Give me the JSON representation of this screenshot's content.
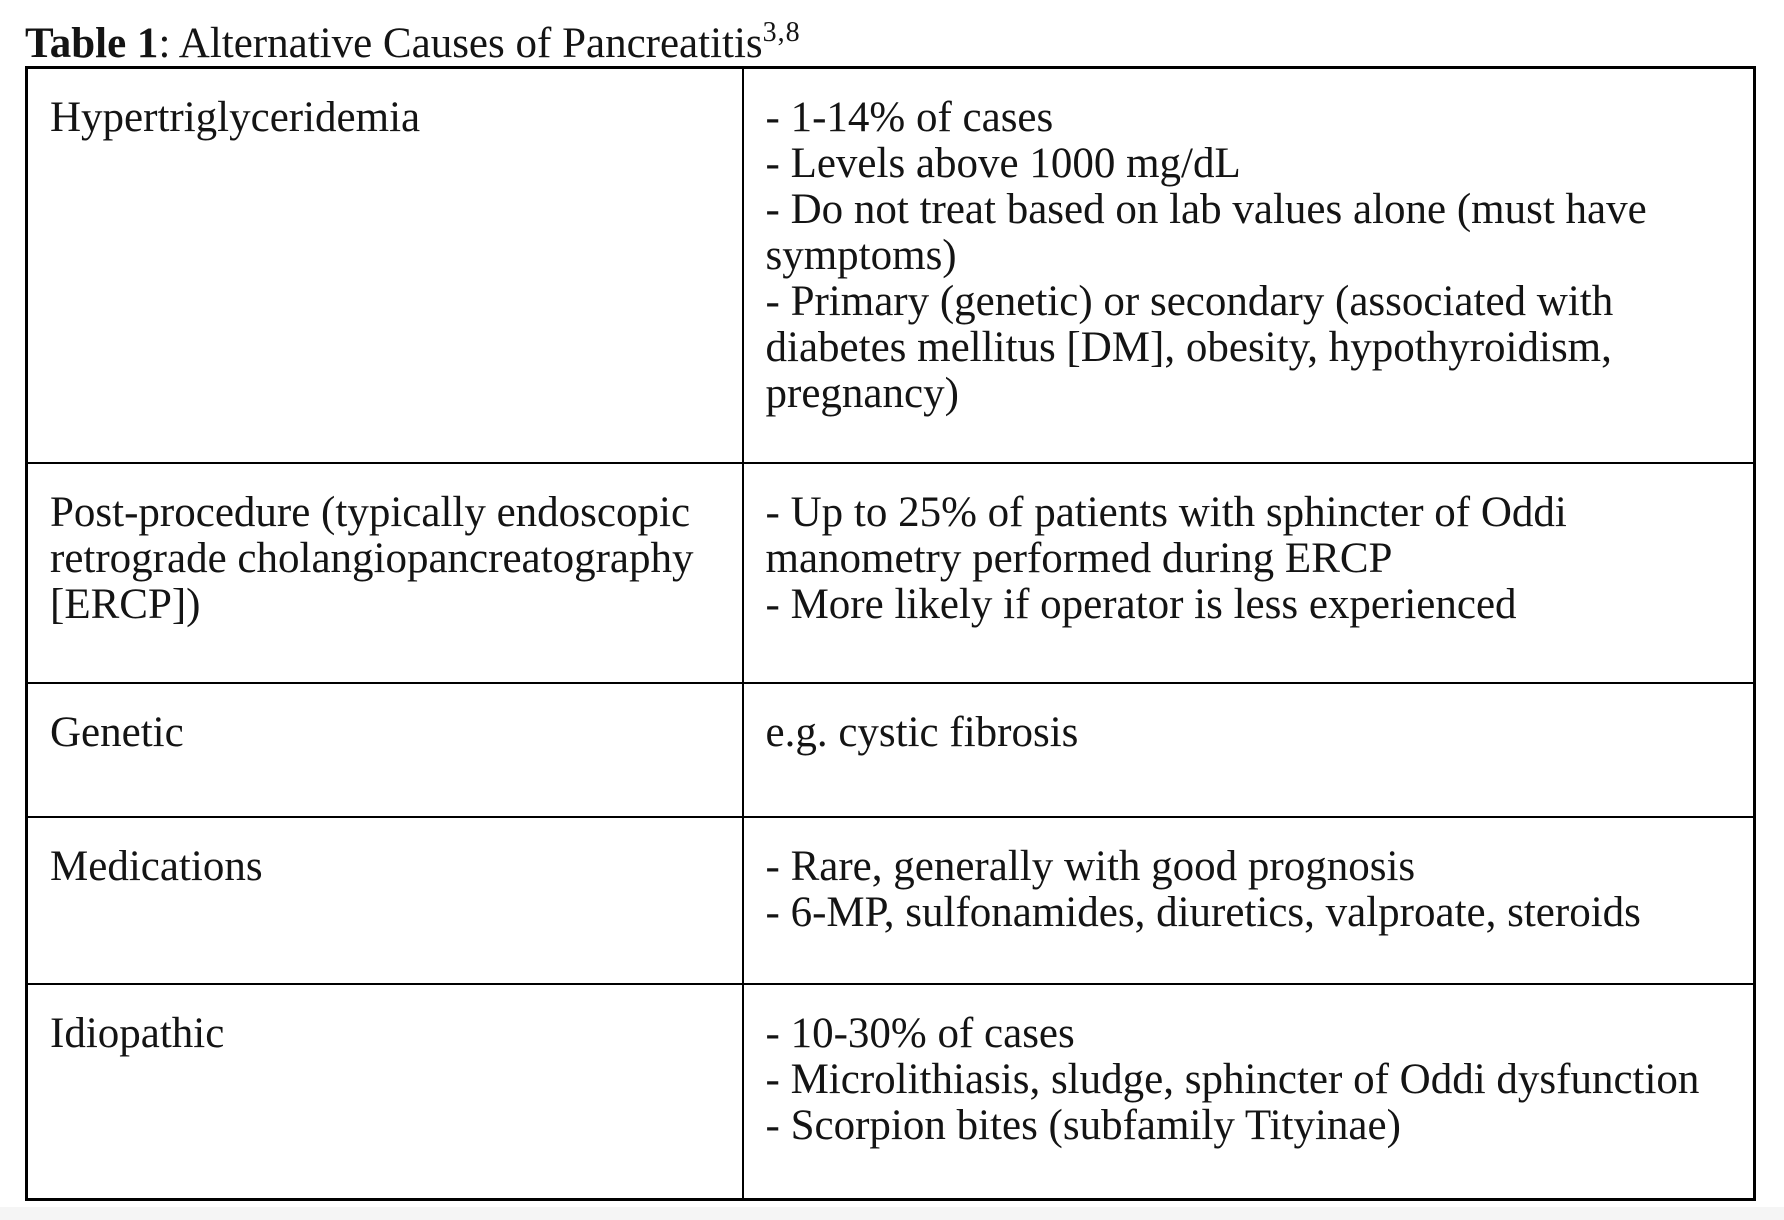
{
  "page": {
    "background": "#ffffff",
    "text_color": "#141414",
    "border_color": "#000000",
    "footer_strip_color": "#f5f5f5"
  },
  "title": {
    "label": "Table 1",
    "rest": ": Alternative Causes of Pancreatitis",
    "superscript": "3,8"
  },
  "table": {
    "rows": [
      {
        "cause": "Hypertriglyceridemia",
        "details": [
          "- 1-14% of cases",
          "- Levels above 1000 mg/dL",
          "- Do not treat based on lab values alone (must have symptoms)",
          "- Primary (genetic) or secondary (associated with diabetes mellitus [DM], obesity, hypothyroidism, pregnancy)"
        ]
      },
      {
        "cause": "Post-procedure (typically endoscopic retrograde cholangiopancreatography [ERCP])",
        "details": [
          "- Up to 25% of patients with sphincter of Oddi manometry performed during ERCP",
          "- More likely if operator is less experienced"
        ]
      },
      {
        "cause": "Genetic",
        "details": [
          "e.g. cystic fibrosis"
        ]
      },
      {
        "cause": "Medications",
        "details": [
          "- Rare, generally with good prognosis",
          "- 6-MP, sulfonamides, diuretics, valproate, steroids"
        ]
      },
      {
        "cause": "Idiopathic",
        "details": [
          "- 10-30% of cases",
          "- Microlithiasis, sludge, sphincter of Oddi dysfunction",
          "- Scorpion bites (subfamily Tityinae)"
        ]
      }
    ]
  }
}
